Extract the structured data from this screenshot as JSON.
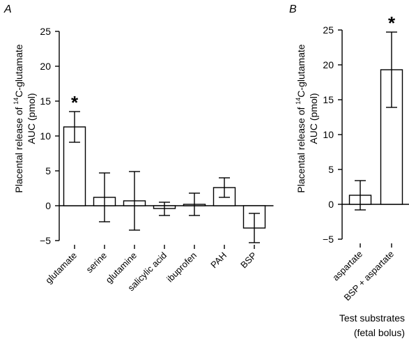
{
  "xlabel_line1": "Test substrates",
  "xlabel_line2": "(fetal bolus)",
  "chart_data": [
    {
      "type": "bar",
      "panel_label": "A",
      "ylabel_line1_pre": "Placental release of ",
      "ylabel_sup": "14",
      "ylabel_line1_post": "C-glutamate",
      "ylabel_line2": "AUC (pmol)",
      "ylim": [
        -5,
        25
      ],
      "yticks": [
        -5,
        0,
        5,
        10,
        15,
        20,
        25
      ],
      "categories": [
        "glutamate",
        "serine",
        "glutamine",
        "salicylic acid",
        "ibuprofen",
        "PAH",
        "BSP"
      ],
      "values": [
        11.3,
        1.2,
        0.7,
        -0.4,
        0.2,
        2.6,
        -3.2
      ],
      "error_low": [
        9.1,
        -2.3,
        -3.5,
        -1.4,
        -1.4,
        1.2,
        -5.3
      ],
      "error_high": [
        13.5,
        4.7,
        4.9,
        0.5,
        1.8,
        4.0,
        -1.1
      ],
      "significance": [
        "*",
        "",
        "",
        "",
        "",
        "",
        ""
      ]
    },
    {
      "type": "bar",
      "panel_label": "B",
      "ylabel_line1_pre": "Placental release of ",
      "ylabel_sup": "14",
      "ylabel_line1_post": "C-glutamate",
      "ylabel_line2": "AUC (pmol)",
      "ylim": [
        -5,
        25
      ],
      "yticks": [
        -5,
        0,
        5,
        10,
        15,
        20,
        25
      ],
      "categories": [
        "aspartate",
        "BSP + aspartate"
      ],
      "values": [
        1.3,
        19.3
      ],
      "error_low": [
        -0.8,
        13.9
      ],
      "error_high": [
        3.4,
        24.7
      ],
      "significance": [
        "",
        "*"
      ]
    }
  ]
}
